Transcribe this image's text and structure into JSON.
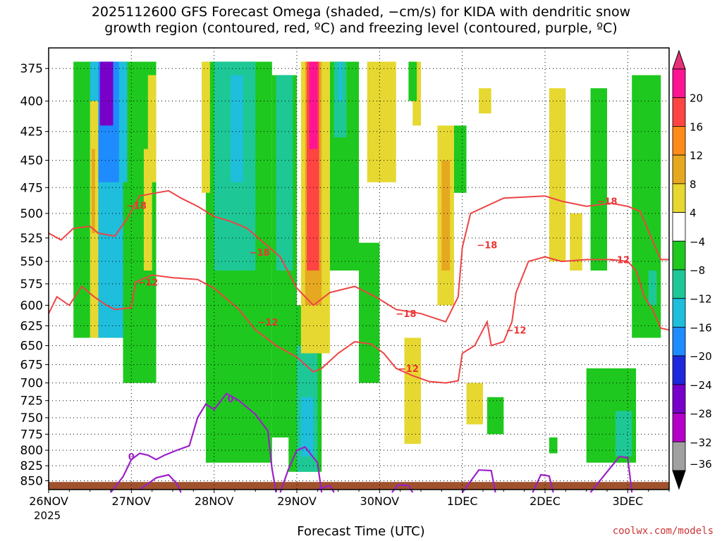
{
  "chart_data": {
    "type": "heatmap",
    "title_line1": "2025112600 GFS Forecast Omega (shaded, −cm/s) for KIDA with dendritic snow",
    "title_line2": "growth region (contoured, red, ºC) and freezing level (contoured, purple, ºC)",
    "xlabel": "Forecast Time (UTC)",
    "x_tick_labels": [
      "26NOV",
      "27NOV",
      "28NOV",
      "29NOV",
      "30NOV",
      "1DEC",
      "2DEC",
      "3DEC"
    ],
    "x_year_label": "2025",
    "x_range_days": [
      0,
      7.5
    ],
    "y_tick_labels": [
      "375",
      "400",
      "425",
      "450",
      "475",
      "500",
      "525",
      "550",
      "575",
      "600",
      "625",
      "650",
      "675",
      "700",
      "725",
      "750",
      "775",
      "800",
      "825",
      "850"
    ],
    "y_range_hpa": [
      360,
      865
    ],
    "y_scale": "log-pressure",
    "grid": true,
    "colorbar": {
      "labels": [
        "20",
        "16",
        "12",
        "8",
        "4",
        "−4",
        "−8",
        "−12",
        "−16",
        "−20",
        "−24",
        "−28",
        "−32",
        "−36"
      ],
      "colors": [
        "#ff1493",
        "#ff4444",
        "#ff8c1a",
        "#e6a820",
        "#e6d830",
        "#ffffff",
        "#1ec81e",
        "#1ec896",
        "#1ebedc",
        "#1e8cff",
        "#1e28dc",
        "#7800c8",
        "#b400c8",
        "#a0a0a0"
      ],
      "top_color": "#e6307a",
      "bottom_color": "#000000"
    },
    "shaded_regions": [
      {
        "color": "#1ec81e",
        "x": [
          0.3,
          0.9
        ],
        "p": [
          370,
          640
        ]
      },
      {
        "color": "#1ec81e",
        "x": [
          0.9,
          1.3
        ],
        "p": [
          370,
          700
        ]
      },
      {
        "color": "#1ebedc",
        "x": [
          0.5,
          0.95
        ],
        "p": [
          370,
          640
        ]
      },
      {
        "color": "#1e8cff",
        "x": [
          0.6,
          0.85
        ],
        "p": [
          370,
          470
        ]
      },
      {
        "color": "#7800c8",
        "x": [
          0.62,
          0.78
        ],
        "p": [
          370,
          420
        ]
      },
      {
        "color": "#e6d830",
        "x": [
          0.5,
          0.6
        ],
        "p": [
          400,
          640
        ]
      },
      {
        "color": "#e6a820",
        "x": [
          0.52,
          0.56
        ],
        "p": [
          440,
          520
        ]
      },
      {
        "color": "#1ec81e",
        "x": [
          0.9,
          1.1
        ],
        "p": [
          470,
          680
        ]
      },
      {
        "color": "#e6d830",
        "x": [
          1.15,
          1.25
        ],
        "p": [
          440,
          560
        ]
      },
      {
        "color": "#1ec81e",
        "x": [
          1.9,
          2.7
        ],
        "p": [
          370,
          820
        ]
      },
      {
        "color": "#1ec896",
        "x": [
          2.0,
          2.5
        ],
        "p": [
          370,
          560
        ]
      },
      {
        "color": "#1ebedc",
        "x": [
          2.2,
          2.35
        ],
        "p": [
          380,
          470
        ]
      },
      {
        "color": "#1ec81e",
        "x": [
          2.7,
          3.0
        ],
        "p": [
          380,
          780
        ]
      },
      {
        "color": "#1ec896",
        "x": [
          2.75,
          2.95
        ],
        "p": [
          380,
          560
        ]
      },
      {
        "color": "#e6d830",
        "x": [
          1.85,
          1.95
        ],
        "p": [
          370,
          480
        ]
      },
      {
        "color": "#e6d830",
        "x": [
          1.2,
          1.3
        ],
        "p": [
          380,
          470
        ]
      },
      {
        "color": "#1ec81e",
        "x": [
          2.9,
          3.3
        ],
        "p": [
          600,
          835
        ]
      },
      {
        "color": "#1ec896",
        "x": [
          3.0,
          3.25
        ],
        "p": [
          650,
          835
        ]
      },
      {
        "color": "#1ebedc",
        "x": [
          3.05,
          3.2
        ],
        "p": [
          720,
          810
        ]
      },
      {
        "color": "#e6d830",
        "x": [
          3.05,
          3.4
        ],
        "p": [
          370,
          660
        ]
      },
      {
        "color": "#e6a820",
        "x": [
          3.1,
          3.3
        ],
        "p": [
          370,
          600
        ]
      },
      {
        "color": "#ff4444",
        "x": [
          3.12,
          3.27
        ],
        "p": [
          370,
          560
        ]
      },
      {
        "color": "#ff1493",
        "x": [
          3.15,
          3.25
        ],
        "p": [
          370,
          440
        ]
      },
      {
        "color": "#1ec81e",
        "x": [
          3.4,
          3.75
        ],
        "p": [
          370,
          560
        ]
      },
      {
        "color": "#1ec896",
        "x": [
          3.45,
          3.6
        ],
        "p": [
          370,
          430
        ]
      },
      {
        "color": "#1ebedc",
        "x": [
          3.5,
          3.55
        ],
        "p": [
          370,
          400
        ]
      },
      {
        "color": "#e6d830",
        "x": [
          3.85,
          4.2
        ],
        "p": [
          370,
          470
        ]
      },
      {
        "color": "#1ec81e",
        "x": [
          3.75,
          4.0
        ],
        "p": [
          530,
          700
        ]
      },
      {
        "color": "#e6d830",
        "x": [
          4.3,
          4.5
        ],
        "p": [
          640,
          790
        ]
      },
      {
        "color": "#e6d830",
        "x": [
          4.7,
          4.9
        ],
        "p": [
          420,
          600
        ]
      },
      {
        "color": "#e6a820",
        "x": [
          4.75,
          4.85
        ],
        "p": [
          450,
          560
        ]
      },
      {
        "color": "#1ec81e",
        "x": [
          4.9,
          5.05
        ],
        "p": [
          420,
          480
        ]
      },
      {
        "color": "#e6d830",
        "x": [
          4.4,
          4.5
        ],
        "p": [
          370,
          420
        ]
      },
      {
        "color": "#1ec81e",
        "x": [
          4.35,
          4.45
        ],
        "p": [
          370,
          400
        ]
      },
      {
        "color": "#e6d830",
        "x": [
          5.2,
          5.35
        ],
        "p": [
          390,
          410
        ]
      },
      {
        "color": "#1ec81e",
        "x": [
          5.3,
          5.5
        ],
        "p": [
          720,
          775
        ]
      },
      {
        "color": "#e6d830",
        "x": [
          6.05,
          6.25
        ],
        "p": [
          390,
          550
        ]
      },
      {
        "color": "#e6d830",
        "x": [
          5.05,
          5.25
        ],
        "p": [
          700,
          760
        ]
      },
      {
        "color": "#1ec81e",
        "x": [
          6.05,
          6.15
        ],
        "p": [
          780,
          805
        ]
      },
      {
        "color": "#1ec81e",
        "x": [
          6.55,
          6.75
        ],
        "p": [
          390,
          560
        ]
      },
      {
        "color": "#1ec81e",
        "x": [
          6.5,
          7.1
        ],
        "p": [
          680,
          820
        ]
      },
      {
        "color": "#1ec896",
        "x": [
          6.85,
          7.05
        ],
        "p": [
          740,
          810
        ]
      },
      {
        "color": "#1ec81e",
        "x": [
          7.05,
          7.4
        ],
        "p": [
          380,
          640
        ]
      },
      {
        "color": "#1ec896",
        "x": [
          7.25,
          7.35
        ],
        "p": [
          560,
          600
        ]
      },
      {
        "color": "#e6d830",
        "x": [
          6.3,
          6.45
        ],
        "p": [
          500,
          560
        ]
      }
    ],
    "red_contours": [
      {
        "label": "−18",
        "label_pos": [
          0.95,
          487
        ],
        "points": [
          [
            0,
            520
          ],
          [
            0.15,
            527
          ],
          [
            0.3,
            515
          ],
          [
            0.5,
            513
          ],
          [
            0.6,
            520
          ],
          [
            0.8,
            523
          ],
          [
            0.95,
            505
          ],
          [
            1.1,
            483
          ],
          [
            1.3,
            480
          ],
          [
            1.45,
            478
          ],
          [
            1.6,
            485
          ],
          [
            1.8,
            493
          ],
          [
            2.0,
            503
          ],
          [
            2.2,
            508
          ],
          [
            2.4,
            515
          ],
          [
            2.6,
            530
          ],
          [
            2.8,
            545
          ],
          [
            3.0,
            580
          ],
          [
            3.2,
            600
          ],
          [
            3.4,
            585
          ],
          [
            3.7,
            578
          ],
          [
            3.95,
            590
          ],
          [
            4.2,
            605
          ],
          [
            4.5,
            610
          ],
          [
            4.8,
            620
          ],
          [
            4.95,
            590
          ],
          [
            5.0,
            535
          ],
          [
            5.1,
            500
          ],
          [
            5.5,
            485
          ],
          [
            6.0,
            483
          ],
          [
            6.2,
            488
          ],
          [
            6.5,
            493
          ],
          [
            6.8,
            490
          ],
          [
            7.0,
            493
          ],
          [
            7.15,
            498
          ],
          [
            7.3,
            528
          ],
          [
            7.4,
            548
          ],
          [
            7.5,
            548
          ]
        ]
      },
      {
        "label": "−12",
        "label_pos": [
          1.15,
          567
        ],
        "points": [
          [
            0,
            610
          ],
          [
            0.1,
            590
          ],
          [
            0.25,
            600
          ],
          [
            0.4,
            578
          ],
          [
            0.55,
            590
          ],
          [
            0.7,
            600
          ],
          [
            0.8,
            605
          ],
          [
            1.0,
            603
          ],
          [
            1.05,
            573
          ],
          [
            1.25,
            565
          ],
          [
            1.5,
            568
          ],
          [
            1.8,
            570
          ],
          [
            2.0,
            580
          ],
          [
            2.3,
            605
          ],
          [
            2.5,
            630
          ],
          [
            2.75,
            650
          ],
          [
            3.0,
            665
          ],
          [
            3.2,
            685
          ],
          [
            3.3,
            680
          ],
          [
            3.5,
            660
          ],
          [
            3.7,
            645
          ],
          [
            3.9,
            648
          ],
          [
            4.05,
            660
          ],
          [
            4.2,
            680
          ],
          [
            4.4,
            690
          ],
          [
            4.6,
            698
          ],
          [
            4.8,
            700
          ],
          [
            4.95,
            697
          ],
          [
            5.0,
            660
          ],
          [
            5.15,
            650
          ],
          [
            5.3,
            620
          ],
          [
            5.35,
            650
          ],
          [
            5.5,
            645
          ],
          [
            5.6,
            620
          ],
          [
            5.65,
            585
          ],
          [
            5.8,
            550
          ],
          [
            6.0,
            545
          ],
          [
            6.2,
            550
          ],
          [
            6.5,
            548
          ],
          [
            6.8,
            548
          ],
          [
            7.0,
            550
          ],
          [
            7.1,
            560
          ],
          [
            7.2,
            590
          ],
          [
            7.3,
            605
          ],
          [
            7.4,
            628
          ],
          [
            7.5,
            630
          ]
        ]
      }
    ],
    "red_labels": [
      {
        "text": "−18",
        "x": 1.06,
        "p": 492
      },
      {
        "text": "−18",
        "x": 2.55,
        "p": 540
      },
      {
        "text": "−18",
        "x": 4.32,
        "p": 610
      },
      {
        "text": "−18",
        "x": 5.3,
        "p": 532
      },
      {
        "text": "−18",
        "x": 6.75,
        "p": 488
      },
      {
        "text": "−12",
        "x": 1.2,
        "p": 573
      },
      {
        "text": "−12",
        "x": 2.65,
        "p": 620
      },
      {
        "text": "−12",
        "x": 4.35,
        "p": 680
      },
      {
        "text": "−12",
        "x": 5.65,
        "p": 630
      },
      {
        "text": "−12",
        "x": 6.9,
        "p": 548
      }
    ],
    "purple_contours": [
      {
        "points": [
          [
            0.75,
            870
          ],
          [
            0.9,
            843
          ],
          [
            1.0,
            815
          ],
          [
            1.1,
            805
          ],
          [
            1.2,
            808
          ],
          [
            1.3,
            815
          ],
          [
            1.4,
            808
          ],
          [
            1.55,
            800
          ],
          [
            1.7,
            793
          ],
          [
            1.8,
            750
          ],
          [
            1.9,
            730
          ],
          [
            2.0,
            738
          ],
          [
            2.15,
            715
          ],
          [
            2.3,
            725
          ],
          [
            2.5,
            745
          ],
          [
            2.65,
            770
          ],
          [
            2.7,
            830
          ],
          [
            2.75,
            870
          ]
        ]
      },
      {
        "points": [
          [
            1.1,
            865
          ],
          [
            1.3,
            845
          ],
          [
            1.45,
            840
          ],
          [
            1.55,
            855
          ],
          [
            1.6,
            870
          ]
        ]
      },
      {
        "points": [
          [
            2.8,
            870
          ],
          [
            2.9,
            830
          ],
          [
            3.0,
            800
          ],
          [
            3.1,
            795
          ],
          [
            3.25,
            820
          ],
          [
            3.3,
            870
          ]
        ]
      },
      {
        "points": [
          [
            3.25,
            865
          ],
          [
            3.4,
            858
          ],
          [
            3.45,
            870
          ]
        ]
      },
      {
        "points": [
          [
            4.15,
            870
          ],
          [
            4.22,
            857
          ],
          [
            4.35,
            858
          ],
          [
            4.4,
            870
          ]
        ]
      },
      {
        "points": [
          [
            5.0,
            870
          ],
          [
            5.2,
            832
          ],
          [
            5.35,
            833
          ],
          [
            5.4,
            870
          ]
        ]
      },
      {
        "points": [
          [
            5.85,
            870
          ],
          [
            5.95,
            840
          ],
          [
            6.05,
            842
          ],
          [
            6.1,
            870
          ]
        ]
      },
      {
        "points": [
          [
            6.55,
            870
          ],
          [
            6.75,
            835
          ],
          [
            6.9,
            810
          ],
          [
            7.0,
            812
          ],
          [
            7.05,
            870
          ]
        ]
      }
    ],
    "purple_labels": [
      {
        "text": "0",
        "x": 1.0,
        "p": 810
      },
      {
        "text": "0",
        "x": 2.2,
        "p": 722
      }
    ],
    "credit": "coolwx.com/models"
  }
}
